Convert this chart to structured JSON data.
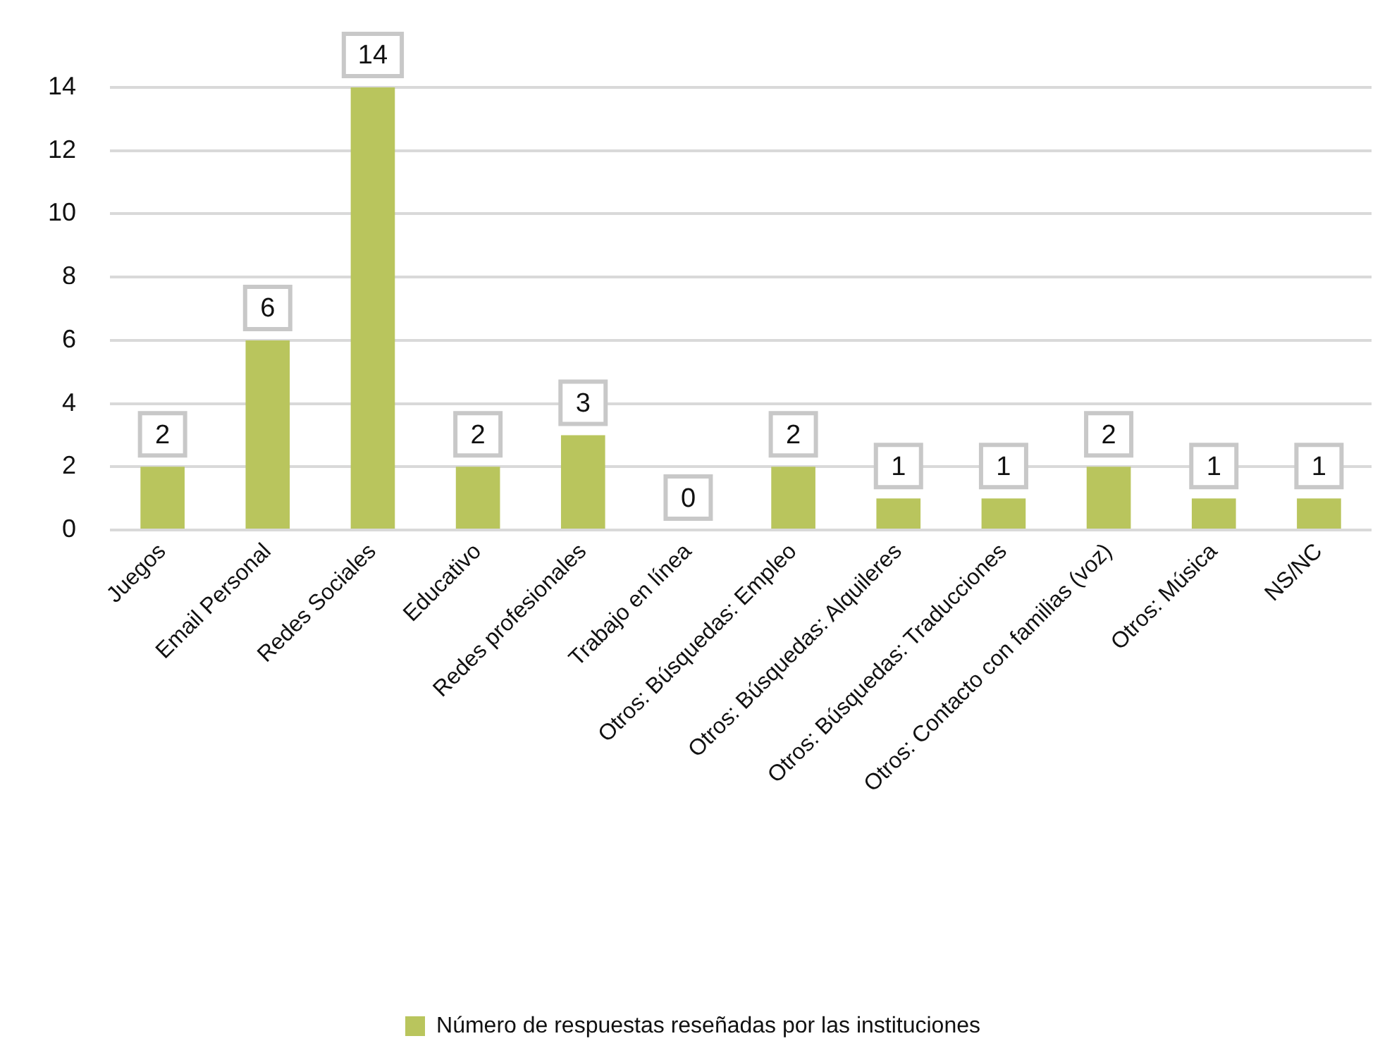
{
  "chart_data": {
    "type": "bar",
    "categories": [
      "Juegos",
      "Email Personal",
      "Redes Sociales",
      "Educativo",
      "Redes profesionales",
      "Trabajo en línea",
      "Otros: Búsquedas: Empleo",
      "Otros: Búsquedas: Alquileres",
      "Otros: Búsquedas: Traducciones",
      "Otros: Contacto con familias (voz)",
      "Otros: Música",
      "NS/NC"
    ],
    "series": [
      {
        "name": "Número de respuestas reseñadas por las instituciones",
        "color": "#b9c55d",
        "values": [
          2,
          6,
          14,
          2,
          3,
          0,
          2,
          1,
          1,
          2,
          1,
          1
        ]
      }
    ],
    "ylim": [
      0,
      14
    ],
    "yticks": [
      0,
      2,
      4,
      6,
      8,
      10,
      12,
      14
    ],
    "grid": "y",
    "legend": "bottom",
    "data_labels": true
  }
}
